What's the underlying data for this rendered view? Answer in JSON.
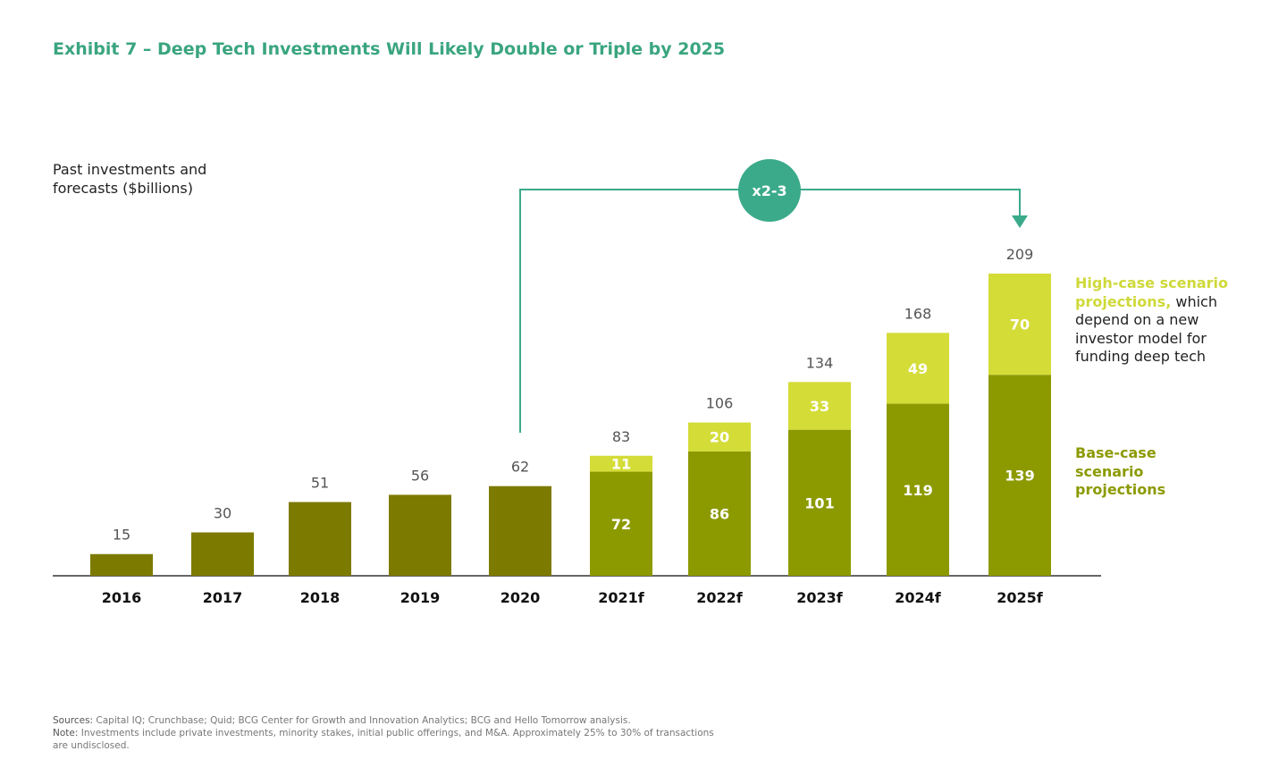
{
  "chart_data": {
    "type": "bar",
    "stacked": true,
    "title": "Exhibit 7 – Deep Tech Investments Will Likely Double or Triple by 2025",
    "ylabel": "Past investments and forecasts ($billions)",
    "categories": [
      "2016",
      "2017",
      "2018",
      "2019",
      "2020",
      "2021f",
      "2022f",
      "2023f",
      "2024f",
      "2025f"
    ],
    "totals": [
      15,
      30,
      51,
      56,
      62,
      83,
      106,
      134,
      168,
      209
    ],
    "series": [
      {
        "name": "Past investments",
        "values": [
          15,
          30,
          51,
          56,
          62,
          null,
          null,
          null,
          null,
          null
        ],
        "color": "#7d7a00"
      },
      {
        "name": "Base-case scenario projections",
        "values": [
          null,
          null,
          null,
          null,
          null,
          72,
          86,
          101,
          119,
          139
        ],
        "color": "#8c9a00"
      },
      {
        "name": "High-case scenario projections",
        "values": [
          null,
          null,
          null,
          null,
          null,
          11,
          20,
          33,
          49,
          70
        ],
        "color": "#d4dc38"
      }
    ],
    "ylim": [
      0,
      209
    ],
    "grid": false,
    "annotation": {
      "label": "x2-3",
      "from": "2020",
      "to": "2025f",
      "color": "#3aaa8a"
    }
  },
  "legend": {
    "high_bold": "High-case scenario projections,",
    "high_rest": " which depend on a new investor model for funding deep tech",
    "base": "Base-case scenario projections"
  },
  "footer": {
    "sources_label": "Sources:",
    "sources": " Capital IQ; Crunchbase; Quid; BCG Center for Growth and Innovation Analytics; BCG and Hello Tomorrow analysis.",
    "note_label": "Note:",
    "note": " Investments include private investments, minority stakes, initial public offerings, and M&A. Approximately 25% to 30% of transactions are undisclosed."
  }
}
